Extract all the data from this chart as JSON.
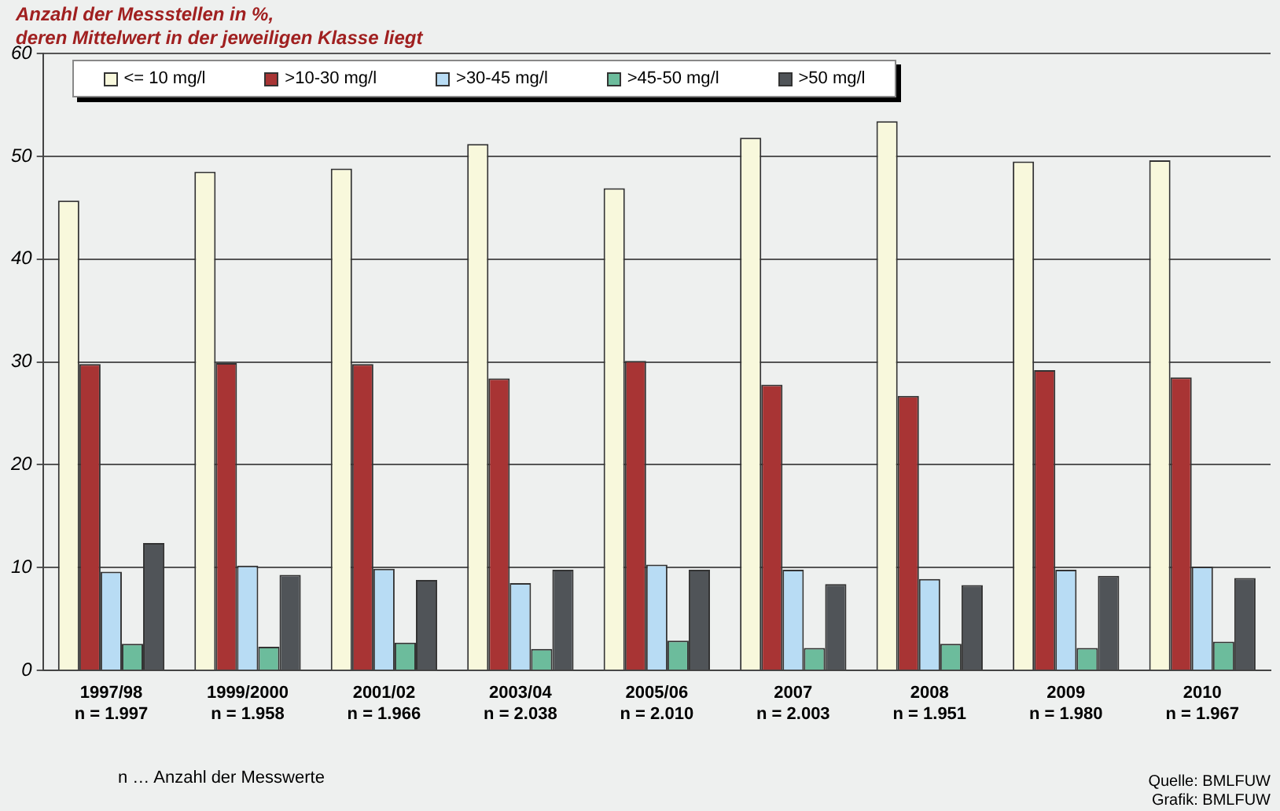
{
  "chart_data": {
    "type": "bar",
    "title": "Anzahl der Messstellen in %,\nderen Mittelwert in der jeweiligen Klasse liegt",
    "categories": [
      "1997/98\nn = 1.997",
      "1999/2000\nn = 1.958",
      "2001/02\nn = 1.966",
      "2003/04\nn = 2.038",
      "2005/06\nn = 2.010",
      "2007\nn = 2.003",
      "2008\nn = 1.951",
      "2009\nn = 1.980",
      "2010\nn = 1.967"
    ],
    "series": [
      {
        "name": "<= 10 mg/l",
        "color": "#f8f8dc",
        "values": [
          45.7,
          48.5,
          48.8,
          51.2,
          46.9,
          51.8,
          53.4,
          49.5,
          49.6
        ]
      },
      {
        "name": ">10-30 mg/l",
        "color": "#a83434",
        "values": [
          29.8,
          29.9,
          29.8,
          28.4,
          30.1,
          27.8,
          26.7,
          29.2,
          28.5
        ]
      },
      {
        "name": ">30-45 mg/l",
        "color": "#b8dcf4",
        "values": [
          9.6,
          10.2,
          9.9,
          8.5,
          10.3,
          9.8,
          8.9,
          9.8,
          10.1
        ]
      },
      {
        "name": ">45-50 mg/l",
        "color": "#6cbc9c",
        "values": [
          2.6,
          2.3,
          2.7,
          2.1,
          2.9,
          2.2,
          2.6,
          2.2,
          2.8
        ]
      },
      {
        "name": ">50 mg/l",
        "color": "#505458",
        "values": [
          12.4,
          9.3,
          8.8,
          9.8,
          9.8,
          8.4,
          8.3,
          9.2,
          9.0
        ]
      }
    ],
    "ylim": [
      0,
      60
    ],
    "yticks": [
      0,
      10,
      20,
      30,
      40,
      50,
      60
    ],
    "grid": "y",
    "legend": "top",
    "annotations": [
      "n … Anzahl der Messwerte",
      "Quelle: BMLFUW",
      "Grafik: BMLFUW"
    ]
  }
}
